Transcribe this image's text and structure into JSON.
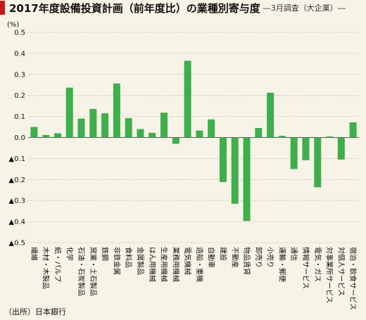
{
  "header": {
    "title": "2017年度設備投資計画（前年度比）の業種別寄与度",
    "subtitle": "―3月調査（大企業）―"
  },
  "source": "（出所）日本銀行",
  "colors": {
    "bar": "#3daf4b",
    "accent": "#c8161d",
    "background": "#f7f3e7",
    "grid": "#b9b3a3"
  },
  "chart_data": {
    "type": "bar",
    "unit": "(%)",
    "ylim": [
      -0.5,
      0.5
    ],
    "yticks": [
      "0.5",
      "0.4",
      "0.3",
      "0.2",
      "0.1",
      "0.0",
      "▲0.1",
      "▲0.2",
      "▲0.3",
      "▲0.4",
      "▲0.5"
    ],
    "grid": true,
    "categories": [
      "繊維",
      "木材・木製品",
      "紙・パルプ",
      "化学",
      "石油・石炭製品",
      "窯業・土石製品",
      "鉄鋼",
      "非鉄金属",
      "食料品",
      "金属製品",
      "はん用機械",
      "生産用機械",
      "業務用機械",
      "電気機械",
      "造船・重機",
      "自動車",
      "建設",
      "不動産",
      "物品賃貸",
      "卸売り",
      "小売り",
      "運輸・郵便",
      "通信",
      "情報サービス",
      "電気・ガス",
      "対事業所サービス",
      "対個人サービス",
      "宿泊・飲食サービス"
    ],
    "values": [
      0.05,
      0.012,
      0.02,
      0.237,
      0.09,
      0.136,
      0.115,
      0.257,
      0.092,
      0.04,
      0.022,
      0.118,
      -0.03,
      0.365,
      0.033,
      0.086,
      -0.212,
      -0.315,
      -0.397,
      0.045,
      0.213,
      0.008,
      -0.15,
      -0.108,
      -0.237,
      0.005,
      -0.105,
      0.072
    ]
  }
}
